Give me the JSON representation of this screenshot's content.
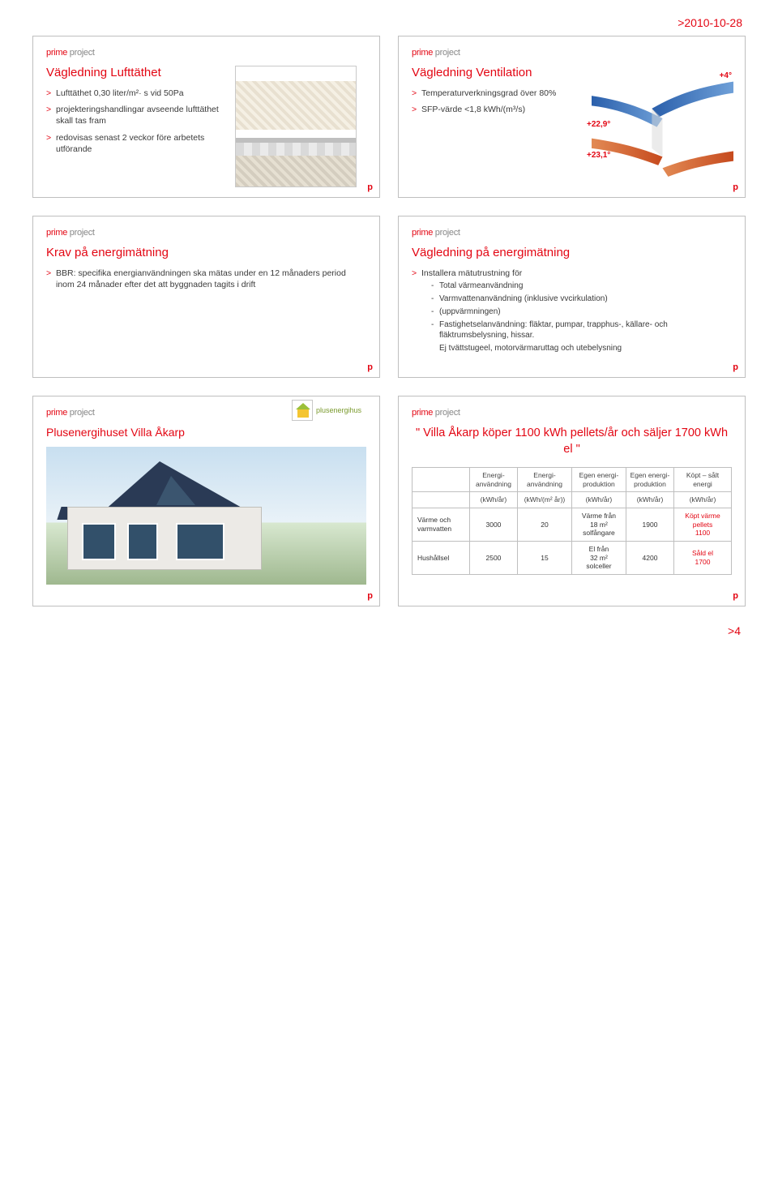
{
  "page": {
    "date_header": ">2010-10-28",
    "footer_pagenum": ">4",
    "logo_prime": "prime",
    "logo_project": " project",
    "corner_mark": "p"
  },
  "slide1": {
    "title": "Vägledning Lufttäthet",
    "bullets": [
      "Lufttäthet 0,30 liter/m²· s vid 50Pa",
      "projekteringshandlingar avseende lufttäthet skall tas fram",
      "redovisas senast 2 veckor före arbetets utförande"
    ]
  },
  "slide2": {
    "title": "Vägledning Ventilation",
    "bullets": [
      "Temperaturverkningsgrad över 80%",
      "SFP-värde <1,8 kWh/(m³/s)"
    ],
    "labels": {
      "top": "+4°",
      "mid": "+22,9°",
      "bot": "+23,1°"
    },
    "colors": {
      "cold": "#2a5fab",
      "warm": "#d65a2a"
    }
  },
  "slide3": {
    "title": "Krav på energimätning",
    "bullets": [
      "BBR: specifika energianvändningen ska mätas under en 12 månaders period inom 24 månader efter det att byggnaden tagits i drift"
    ]
  },
  "slide4": {
    "title": "Vägledning på energimätning",
    "lead": "Installera mätutrustning för",
    "subs": [
      "Total värmeanvändning",
      "Varmvattenanvändning (inklusive vvcirkulation)",
      "(uppvärmningen)",
      "Fastighetselanvändning: fläktar, pumpar, trapphus-, källare- och fläktrumsbelysning, hissar."
    ],
    "tail": "Ej tvättstugeel, motorvärmaruttag och utebelysning"
  },
  "slide5": {
    "title": "Plusenergihuset Villa Åkarp",
    "eco_label": "plusenergihus"
  },
  "slide6": {
    "quote": "\" Villa Åkarp köper 1100 kWh pellets/år och säljer 1700 kWh el \"",
    "columns": [
      {
        "h1": "",
        "h2": ""
      },
      {
        "h1": "Energi-\nanvändning",
        "h2": "(kWh/år)"
      },
      {
        "h1": "Energi-\nanvändning",
        "h2": "(kWh/(m² år))"
      },
      {
        "h1": "Egen energi-\nproduktion",
        "h2": "(kWh/år)"
      },
      {
        "h1": "Egen energi-\nproduktion",
        "h2": "(kWh/år)"
      },
      {
        "h1": "Köpt – sålt\nenergi",
        "h2": "(kWh/år)"
      }
    ],
    "rows": [
      {
        "label": "Värme och varmvatten",
        "cells": [
          "3000",
          "20",
          "Värme från\n18 m²\nsolfångare",
          "1900",
          "Köpt värme\npellets\n1100"
        ],
        "red_last": true
      },
      {
        "label": "Hushållsel",
        "cells": [
          "2500",
          "15",
          "El från\n32 m²\nsolceller",
          "4200",
          "Såld el\n1700"
        ],
        "red_last": true
      }
    ]
  }
}
